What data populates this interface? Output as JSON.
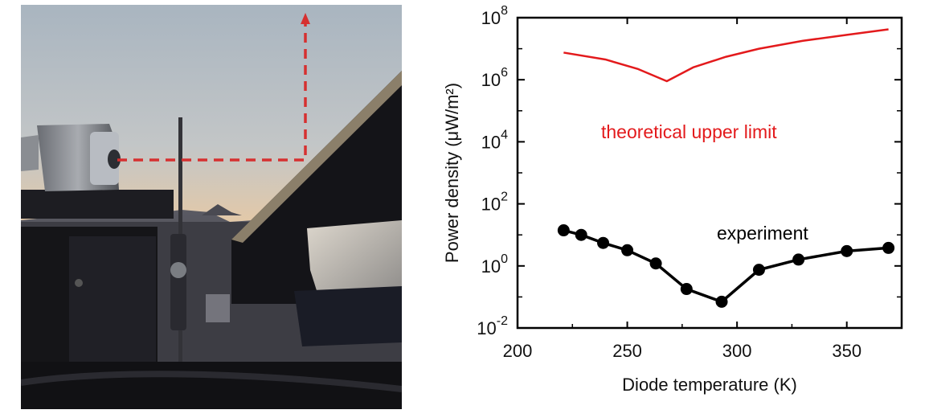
{
  "photo": {
    "subject": "photo",
    "colors": {
      "sky_top": "#aab6c1",
      "sky_horizon": "#e8c9a3",
      "arrow": "#d63030",
      "frame": "#151518"
    }
  },
  "chart_data": {
    "type": "line",
    "xlabel": "Diode temperature (K)",
    "ylabel": "Power density (μW/m²)",
    "xlim": [
      200,
      375
    ],
    "ylim": [
      0.01,
      100000000
    ],
    "yscale": "log",
    "xticks": [
      200,
      250,
      300,
      350
    ],
    "yticks": [
      {
        "base": "10",
        "exp": "-2",
        "value": 0.01
      },
      {
        "base": "10",
        "exp": "0",
        "value": 1
      },
      {
        "base": "10",
        "exp": "2",
        "value": 100
      },
      {
        "base": "10",
        "exp": "4",
        "value": 10000
      },
      {
        "base": "10",
        "exp": "6",
        "value": 1000000
      },
      {
        "base": "10",
        "exp": "8",
        "value": 100000000
      }
    ],
    "grid": false,
    "series": [
      {
        "name": "theoretical upper limit",
        "color": "#e31a1c",
        "marker": "none",
        "x": [
          221,
          240,
          255,
          268,
          280,
          295,
          310,
          330,
          350,
          369
        ],
        "y": [
          7500000,
          4500000,
          2200000,
          900000,
          2500000,
          5500000,
          10000000,
          18000000,
          28000000,
          42000000
        ]
      },
      {
        "name": "experiment",
        "color": "#000000",
        "marker": "circle",
        "x": [
          221,
          229,
          239,
          250,
          263,
          277,
          293,
          310,
          328,
          350,
          369
        ],
        "y": [
          14,
          10,
          5.5,
          3.2,
          1.2,
          0.18,
          0.07,
          0.75,
          1.6,
          3.0,
          3.8
        ]
      }
    ],
    "annotations": [
      {
        "text": "theoretical upper limit",
        "color": "#e31a1c"
      },
      {
        "text": "experiment",
        "color": "#000000"
      }
    ]
  }
}
